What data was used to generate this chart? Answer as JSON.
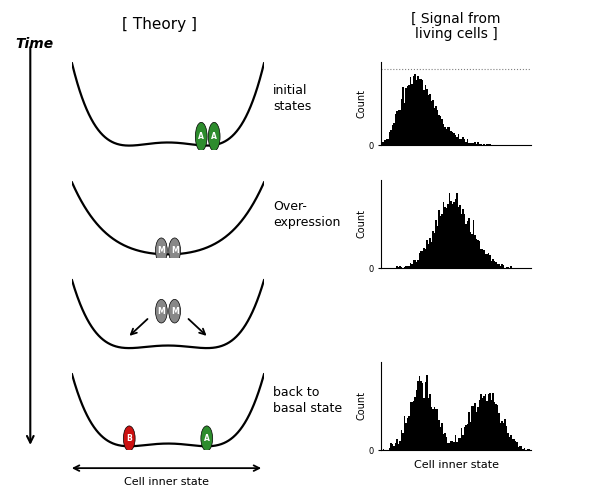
{
  "background_color": "#ffffff",
  "green_color": "#2d8c2d",
  "red_color": "#cc1111",
  "gray_color": "#888888",
  "cell_label_A": "A",
  "cell_label_B": "B",
  "cell_label_M": "M",
  "ylabel_count": "Count",
  "xlabel_theory": "Cell inner state",
  "xlabel_hist": "Cell inner state",
  "label_row1": "initial\nstates",
  "label_row2": "Over-\nexpression",
  "label_row3": "back to\nbasal state",
  "label_time": "Time",
  "title_theory": "[ Theory ]",
  "title_signal": "[ Signal from\nliving cells ]"
}
